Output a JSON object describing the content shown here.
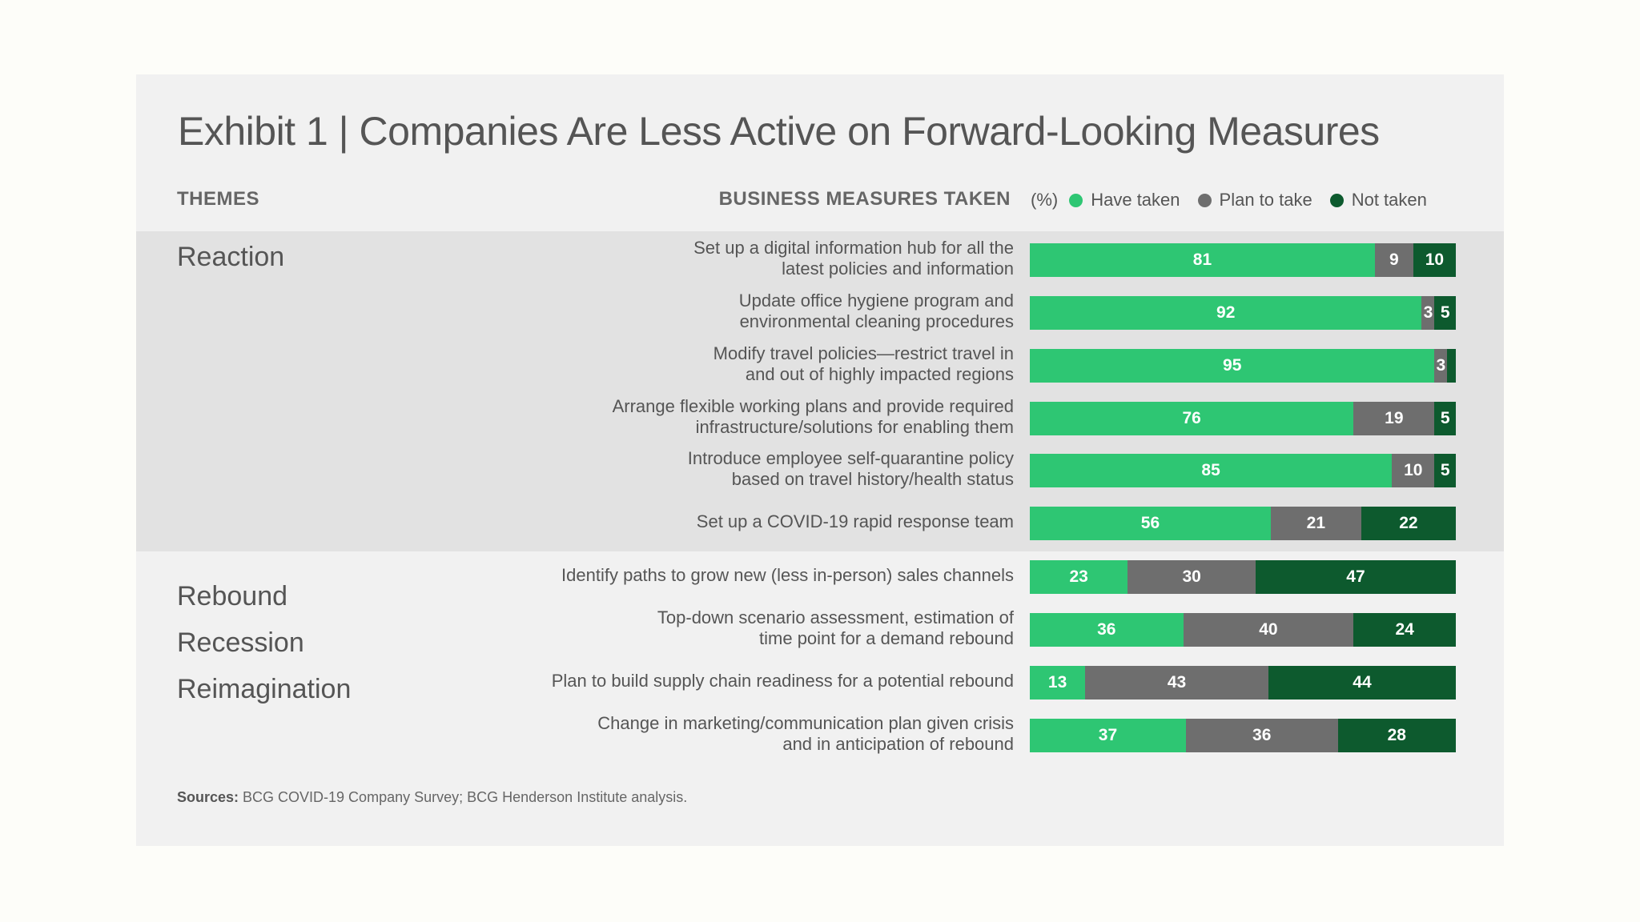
{
  "title": "Exhibit 1 | Companies Are Less Active on Forward-Looking Measures",
  "headers": {
    "themes": "THEMES",
    "measures": "BUSINESS MEASURES TAKEN"
  },
  "legend": {
    "unit": "(%)",
    "items": [
      {
        "label": "Have taken",
        "color": "#2ec673",
        "icon": "green-dot-icon"
      },
      {
        "label": "Plan to take",
        "color": "#6e6e6e",
        "icon": "gray-dot-icon"
      },
      {
        "label": "Not taken",
        "color": "#0d5a2e",
        "icon": "dark-green-dot-icon"
      }
    ]
  },
  "themes": [
    "Reaction",
    "Rebound",
    "Recession",
    "Reimagination"
  ],
  "colors": {
    "have": "#2ec673",
    "plan": "#6e6e6e",
    "not": "#0d5a2e",
    "band": "#e2e2e2",
    "card": "#f1f1f1"
  },
  "chart_data": {
    "type": "bar",
    "orientation": "horizontal",
    "stacked": true,
    "title": "Exhibit 1 | Companies Are Less Active on Forward-Looking Measures",
    "unit": "(%)",
    "xlim": [
      0,
      100
    ],
    "categories": [
      [
        "Set up a digital information hub for all the",
        "latest policies and information"
      ],
      [
        "Update office hygiene program and",
        "environmental cleaning procedures"
      ],
      [
        "Modify travel policies—restrict travel in",
        "and out of highly impacted  regions"
      ],
      [
        "Arrange flexible working plans and provide required",
        "infrastructure/solutions for enabling them"
      ],
      [
        "Introduce employee self-quarantine policy",
        "based on travel history/health status"
      ],
      [
        "Set up a COVID-19 rapid response team"
      ],
      [
        "Identify paths to grow new (less in-person) sales channels"
      ],
      [
        "Top-down scenario assessment, estimation of",
        "time point for a demand rebound"
      ],
      [
        "Plan to build supply chain readiness for a potential rebound"
      ],
      [
        "Change in marketing/communication plan given crisis",
        "and in anticipation of rebound"
      ]
    ],
    "series": [
      {
        "name": "Have taken",
        "values": [
          81,
          92,
          95,
          76,
          85,
          56,
          23,
          36,
          13,
          37
        ]
      },
      {
        "name": "Plan to take",
        "values": [
          9,
          3,
          3,
          19,
          10,
          21,
          30,
          40,
          43,
          36
        ]
      },
      {
        "name": "Not taken",
        "values": [
          10,
          5,
          2,
          5,
          5,
          22,
          47,
          24,
          44,
          28
        ]
      }
    ],
    "hidden_labels": [
      [
        2,
        2
      ]
    ]
  },
  "sources": {
    "label": "Sources:",
    "text": " BCG COVID-19 Company Survey; BCG Henderson Institute analysis."
  }
}
